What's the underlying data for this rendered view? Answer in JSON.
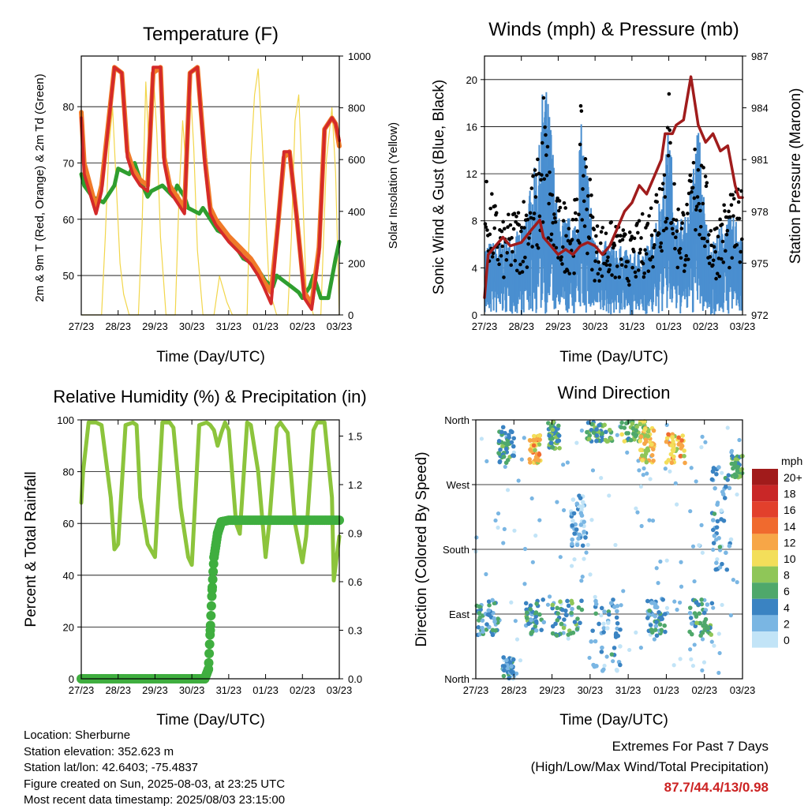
{
  "chart_data": [
    {
      "id": "temperature",
      "type": "line",
      "title": "Temperature (F)",
      "xlabel": "Time (Day/UTC)",
      "ylabel": "2m & 9m T (Red, Orange) & 2m Td (Green)",
      "y2label": "Solar Insolation (Yellow)",
      "x_ticks": [
        "27/23",
        "28/23",
        "29/23",
        "30/23",
        "31/23",
        "01/23",
        "02/23",
        "03/23"
      ],
      "ylim": [
        43,
        89
      ],
      "y_ticks": [
        50,
        60,
        70,
        80
      ],
      "y2lim": [
        0,
        1000
      ],
      "y2_ticks": [
        0,
        200,
        400,
        600,
        800,
        1000
      ],
      "xlim": [
        0,
        7
      ],
      "series": [
        {
          "color": "#2f9e2f",
          "x": [
            0,
            0.08,
            0.3,
            0.6,
            0.9,
            1.0,
            1.3,
            1.45,
            1.6,
            1.8,
            1.9,
            2.2,
            2.5,
            2.6,
            2.8,
            2.9,
            3.2,
            3.3,
            3.5,
            3.7,
            4.0,
            4.2,
            4.4,
            4.7,
            4.9,
            5.0,
            5.2,
            5.3,
            5.5,
            5.7,
            5.9,
            6.0,
            6.2,
            6.3,
            6.5,
            6.7,
            6.9,
            7.0
          ],
          "values": [
            68,
            66,
            64,
            63,
            66,
            69,
            68,
            70,
            67,
            64,
            65,
            66,
            64,
            66,
            64,
            62,
            61,
            62,
            60,
            58,
            57,
            55,
            53,
            52,
            50,
            49,
            48,
            50,
            49,
            48,
            47,
            46,
            48,
            50,
            46,
            46,
            53,
            56
          ]
        },
        {
          "color": "#f07a28",
          "x": [
            0,
            0.08,
            0.4,
            0.55,
            0.9,
            1.1,
            1.25,
            1.4,
            1.6,
            1.8,
            1.95,
            2.15,
            2.25,
            2.4,
            2.6,
            2.8,
            2.95,
            3.15,
            3.35,
            3.5,
            3.65,
            4.0,
            4.3,
            4.6,
            4.8,
            4.95,
            5.15,
            5.35,
            5.5,
            5.65,
            5.85,
            6.05,
            6.25,
            6.45,
            6.6,
            6.8,
            6.9,
            7.0
          ],
          "values": [
            79,
            70,
            62,
            66,
            87,
            86,
            72,
            69,
            67,
            66,
            86,
            87,
            71,
            66,
            64,
            62,
            86,
            87,
            71,
            62,
            60,
            57,
            55,
            53,
            51,
            49,
            47,
            60,
            71,
            72,
            60,
            47,
            45,
            55,
            76,
            78,
            77,
            73
          ]
        },
        {
          "color": "#d42a2a",
          "x": [
            0,
            0.08,
            0.4,
            0.55,
            0.9,
            1.1,
            1.25,
            1.4,
            1.6,
            1.8,
            1.95,
            2.15,
            2.25,
            2.4,
            2.6,
            2.8,
            2.95,
            3.15,
            3.35,
            3.5,
            3.65,
            4.0,
            4.3,
            4.6,
            4.8,
            4.95,
            5.15,
            5.35,
            5.5,
            5.65,
            5.85,
            6.05,
            6.25,
            6.45,
            6.6,
            6.8,
            6.9,
            7.0
          ],
          "values": [
            78,
            68,
            61,
            65,
            87,
            86,
            71,
            68,
            66,
            65,
            87,
            87,
            70,
            65,
            63,
            61,
            86,
            87,
            70,
            61,
            59,
            56,
            54,
            52,
            50,
            48,
            45,
            60,
            72,
            72,
            60,
            46,
            44,
            54,
            76,
            78,
            77,
            74
          ]
        },
        {
          "color": "#f2d64b",
          "axis": "y2",
          "x": [
            0,
            0.55,
            0.65,
            0.75,
            0.85,
            0.95,
            1.05,
            1.15,
            1.3,
            1.55,
            1.65,
            1.75,
            1.85,
            1.95,
            2.05,
            2.15,
            2.3,
            2.55,
            2.65,
            2.75,
            2.85,
            2.95,
            3.05,
            3.15,
            3.3,
            3.6,
            3.75,
            3.85,
            3.95,
            4.1,
            4.5,
            4.6,
            4.7,
            4.8,
            4.9,
            5.0,
            5.1,
            5.3,
            5.6,
            5.7,
            5.8,
            5.9,
            6.0,
            6.1,
            6.3,
            6.5,
            6.65,
            6.8,
            6.9,
            7.0
          ],
          "values": [
            0,
            0,
            300,
            650,
            800,
            500,
            200,
            80,
            0,
            0,
            350,
            900,
            600,
            950,
            700,
            300,
            0,
            0,
            450,
            750,
            550,
            900,
            650,
            250,
            0,
            0,
            150,
            100,
            50,
            0,
            0,
            600,
            850,
            950,
            700,
            400,
            100,
            0,
            0,
            300,
            750,
            850,
            500,
            100,
            0,
            0,
            600,
            800,
            550,
            0
          ]
        }
      ]
    },
    {
      "id": "winds",
      "type": "scatter",
      "title": "Winds (mph) & Pressure (mb)",
      "xlabel": "Time (Day/UTC)",
      "ylabel": "Sonic Wind & Gust (Blue, Black)",
      "y2label": "Station Pressure (Maroon)",
      "x_ticks": [
        "27/23",
        "28/23",
        "29/23",
        "30/23",
        "31/23",
        "01/23",
        "02/23",
        "03/23"
      ],
      "ylim": [
        0,
        22
      ],
      "y_ticks": [
        0,
        4,
        8,
        12,
        16,
        20
      ],
      "y2lim": [
        972,
        987
      ],
      "y2_ticks": [
        972,
        975,
        978,
        981,
        984,
        987
      ],
      "xlim": [
        0,
        7
      ],
      "pressure_series": {
        "color": "#a01c1c",
        "x": [
          0,
          0.1,
          0.3,
          0.5,
          0.7,
          1.0,
          1.3,
          1.5,
          1.6,
          1.8,
          2.0,
          2.2,
          2.4,
          2.6,
          2.8,
          3.0,
          3.2,
          3.4,
          3.6,
          3.8,
          4.0,
          4.2,
          4.4,
          4.6,
          4.8,
          4.9,
          5.1,
          5.2,
          5.4,
          5.6,
          5.8,
          6.0,
          6.2,
          6.4,
          6.6,
          6.8,
          6.9,
          7.0
        ],
        "values": [
          973,
          975.5,
          976,
          976.5,
          976,
          976.2,
          977,
          977.5,
          976.5,
          976,
          975.5,
          975.8,
          975.5,
          976,
          976.2,
          976,
          975.5,
          976,
          977,
          978,
          978.5,
          979.5,
          979,
          980,
          981,
          982.5,
          982.5,
          983,
          983.3,
          985.8,
          983,
          982,
          982.5,
          981.5,
          981.8,
          979.5,
          978.8,
          978.8
        ]
      },
      "wind_envelope": {
        "color": "#4a8fd0",
        "x": [
          0,
          0.5,
          1.0,
          1.5,
          1.6,
          1.8,
          2.0,
          2.5,
          2.6,
          2.8,
          3.0,
          3.5,
          4.0,
          4.5,
          4.9,
          5.0,
          5.2,
          5.5,
          5.8,
          6.0,
          6.2,
          6.5,
          7.0
        ],
        "mean": [
          3,
          3,
          3.5,
          7,
          10,
          8,
          4,
          4,
          8,
          6,
          3,
          3,
          2.5,
          3,
          6,
          8,
          4,
          4,
          8,
          4,
          3,
          4,
          4
        ]
      },
      "gust_envelope": {
        "color": "#000000",
        "x": [
          0,
          0.5,
          1.0,
          1.5,
          1.6,
          1.8,
          2.0,
          2.5,
          2.6,
          2.8,
          3.0,
          3.5,
          4.0,
          4.5,
          4.9,
          5.0,
          5.2,
          5.5,
          5.8,
          6.0,
          6.2,
          6.5,
          7.0
        ],
        "peak": [
          12,
          8,
          10,
          14,
          20,
          12,
          10,
          10,
          18,
          14,
          8,
          8,
          7,
          10,
          16,
          20,
          10,
          10,
          18,
          12,
          8,
          10,
          11
        ]
      }
    },
    {
      "id": "humidity",
      "type": "line",
      "title": "Relative Humidity (%) & Precipitation (in)",
      "xlabel": "Time (Day/UTC)",
      "ylabel": "Percent & Total Rainfall",
      "x_ticks": [
        "27/23",
        "28/23",
        "29/23",
        "30/23",
        "31/23",
        "01/23",
        "02/23",
        "03/23"
      ],
      "ylim": [
        0,
        100
      ],
      "y_ticks": [
        0,
        20,
        40,
        60,
        80,
        100
      ],
      "y2lim": [
        0,
        1.6
      ],
      "y2_ticks": [
        0.0,
        0.3,
        0.6,
        0.9,
        1.2,
        1.5
      ],
      "xlim": [
        0,
        7
      ],
      "series": [
        {
          "color": "#8cc43c",
          "x": [
            0,
            0.05,
            0.2,
            0.4,
            0.55,
            0.8,
            0.9,
            1.0,
            1.2,
            1.4,
            1.5,
            1.6,
            1.8,
            2.0,
            2.2,
            2.4,
            2.5,
            2.7,
            2.9,
            3.0,
            3.2,
            3.4,
            3.5,
            3.6,
            3.7,
            3.8,
            3.9,
            4.0,
            4.2,
            4.3,
            4.5,
            4.6,
            4.8,
            5.0,
            5.1,
            5.3,
            5.4,
            5.6,
            5.8,
            6.0,
            6.1,
            6.3,
            6.4,
            6.6,
            6.8,
            6.85,
            7.0
          ],
          "values": [
            68,
            80,
            99,
            99,
            98,
            70,
            50,
            52,
            98,
            99,
            98,
            70,
            52,
            47,
            99,
            99,
            97,
            66,
            47,
            44,
            98,
            99,
            98,
            96,
            90,
            95,
            99,
            96,
            60,
            56,
            99,
            98,
            80,
            47,
            60,
            97,
            99,
            95,
            60,
            45,
            55,
            96,
            99,
            99,
            70,
            38,
            55
          ]
        },
        {
          "color": "#3fae3f",
          "x": [
            0,
            3.35,
            3.45,
            3.5,
            3.55,
            3.6,
            3.7,
            3.8,
            4.0,
            7.0
          ],
          "values": [
            0,
            0,
            0.06,
            0.3,
            0.55,
            0.75,
            0.9,
            0.97,
            0.98,
            0.98
          ]
        }
      ]
    },
    {
      "id": "direction",
      "type": "scatter",
      "title": "Wind Direction",
      "xlabel": "Time (Day/UTC)",
      "ylabel": "Direction (Colored By Speed)",
      "x_ticks": [
        "27/23",
        "28/23",
        "29/23",
        "30/23",
        "31/23",
        "01/23",
        "02/23",
        "03/23"
      ],
      "y_ticks": [
        "North",
        "East",
        "South",
        "West",
        "North"
      ],
      "ylim": [
        0,
        360
      ],
      "xlim": [
        0,
        7
      ],
      "legend_title": "mph",
      "legend_labels": [
        "20+",
        "18",
        "16",
        "14",
        "12",
        "10",
        "8",
        "6",
        "4",
        "2",
        "0"
      ],
      "legend_colors": [
        "#a11b1b",
        "#c92727",
        "#e2402c",
        "#f06a2e",
        "#f7a647",
        "#f3de5a",
        "#8fc658",
        "#4fa86b",
        "#3a83c2",
        "#7ab6e3",
        "#c2e4f7"
      ],
      "clusters": [
        {
          "x": [
            0.0,
            0.6
          ],
          "dir": [
            60,
            110
          ],
          "speed": 4
        },
        {
          "x": [
            0.6,
            1.0
          ],
          "dir": [
            300,
            350
          ],
          "speed": 5
        },
        {
          "x": [
            0.7,
            1.0
          ],
          "dir": [
            0,
            30
          ],
          "speed": 3
        },
        {
          "x": [
            1.3,
            1.8
          ],
          "dir": [
            60,
            110
          ],
          "speed": 5
        },
        {
          "x": [
            1.4,
            1.7
          ],
          "dir": [
            300,
            340
          ],
          "speed": 11
        },
        {
          "x": [
            1.9,
            2.2
          ],
          "dir": [
            320,
            358
          ],
          "speed": 6
        },
        {
          "x": [
            2.0,
            2.8
          ],
          "dir": [
            60,
            110
          ],
          "speed": 5
        },
        {
          "x": [
            2.5,
            2.9
          ],
          "dir": [
            180,
            260
          ],
          "speed": 2
        },
        {
          "x": [
            2.9,
            3.6
          ],
          "dir": [
            330,
            358
          ],
          "speed": 6
        },
        {
          "x": [
            3.0,
            3.8
          ],
          "dir": [
            10,
            110
          ],
          "speed": 3
        },
        {
          "x": [
            3.8,
            4.5
          ],
          "dir": [
            330,
            358
          ],
          "speed": 7
        },
        {
          "x": [
            4.3,
            4.7
          ],
          "dir": [
            300,
            350
          ],
          "speed": 10
        },
        {
          "x": [
            4.5,
            5.0
          ],
          "dir": [
            60,
            110
          ],
          "speed": 4
        },
        {
          "x": [
            5.0,
            5.5
          ],
          "dir": [
            300,
            340
          ],
          "speed": 11
        },
        {
          "x": [
            5.6,
            6.2
          ],
          "dir": [
            60,
            110
          ],
          "speed": 5
        },
        {
          "x": [
            6.2,
            6.7
          ],
          "dir": [
            150,
            300
          ],
          "speed": 3
        },
        {
          "x": [
            6.7,
            7.0
          ],
          "dir": [
            280,
            310
          ],
          "speed": 6
        }
      ]
    }
  ],
  "info": {
    "location": "Location: Sherburne",
    "elevation": "Station elevation: 352.623 m",
    "latlon": "Station lat/lon: 42.6403; -75.4837",
    "created": "Figure created on Sun, 2025-08-03, at 23:25 UTC",
    "timestamp": "Most recent data timestamp: 2025/08/03 23:15:00"
  },
  "extremes": {
    "title": "Extremes For Past 7 Days",
    "subtitle": "(High/Low/Max Wind/Total Precipitation)",
    "values": "87.7/44.4/13/0.98"
  }
}
